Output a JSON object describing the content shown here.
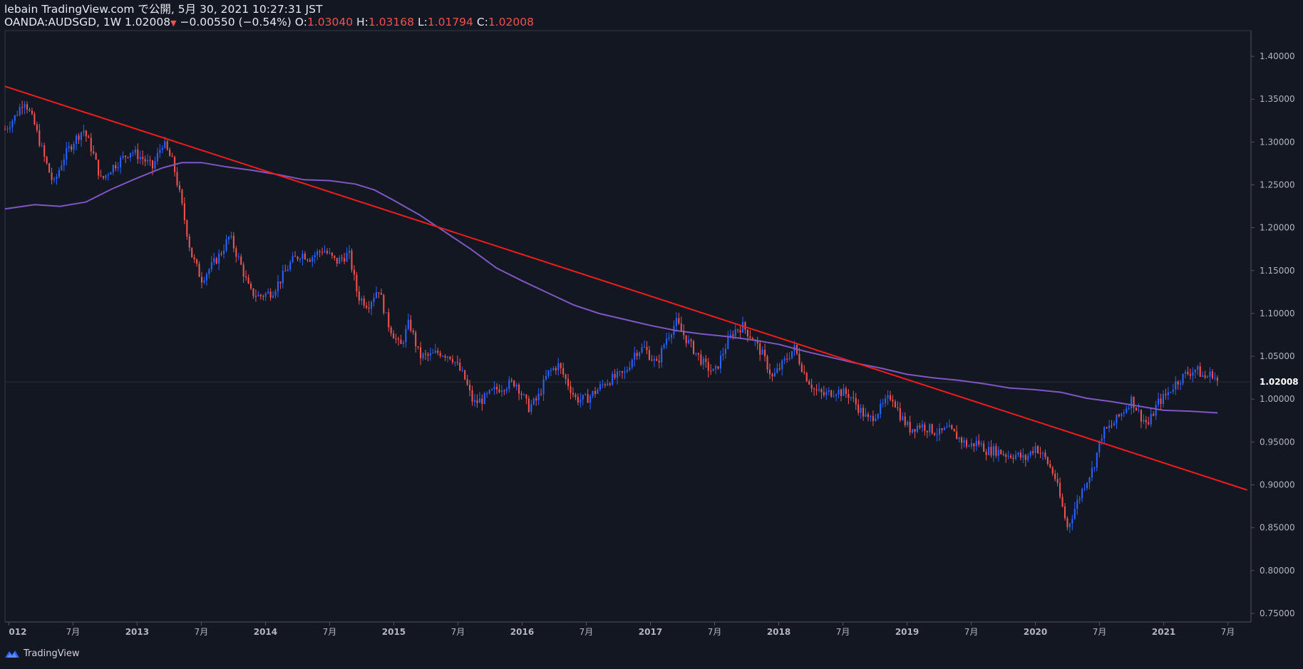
{
  "header": {
    "line1": "lebain TradingView.com で公開, 5月 30, 2021 10:27:31 JST",
    "symbol": "OANDA:AUDSGD, 1W",
    "last": "1.02008",
    "change": "−0.00550 (−0.54%)",
    "o_label": "O:",
    "o_val": "1.03040",
    "h_label": "H:",
    "h_val": "1.03168",
    "l_label": "L:",
    "l_val": "1.01794",
    "c_label": "C:",
    "c_val": "1.02008"
  },
  "footer": {
    "brand": "TradingView"
  },
  "colors": {
    "bg": "#131722",
    "up": "#2962ff",
    "down": "#ef5350",
    "ma": "#7e57c2",
    "trend": "#f21c1c",
    "axis": "#b2b5be"
  },
  "chart_data": {
    "type": "candlestick",
    "symbol": "OANDA:AUDSGD",
    "interval": "1W",
    "ylim": [
      0.74,
      1.43
    ],
    "y_ticks": [
      "1.40000",
      "1.35000",
      "1.30000",
      "1.25000",
      "1.20000",
      "1.15000",
      "1.10000",
      "1.05000",
      "1.00000",
      "0.95000",
      "0.90000",
      "0.85000",
      "0.80000",
      "0.75000"
    ],
    "y_tick_values": [
      1.4,
      1.35,
      1.3,
      1.25,
      1.2,
      1.15,
      1.1,
      1.05,
      1.0,
      0.95,
      0.9,
      0.85,
      0.8,
      0.75
    ],
    "x_ticks": [
      "012",
      "7月",
      "2013",
      "7月",
      "2014",
      "7月",
      "2015",
      "7月",
      "2016",
      "7月",
      "2017",
      "7月",
      "2018",
      "7月",
      "2019",
      "7月",
      "2020",
      "7月",
      "2021",
      "7月"
    ],
    "x_tick_years": [
      2012.0,
      2012.5,
      2013.0,
      2013.5,
      2014.0,
      2014.5,
      2015.0,
      2015.5,
      2016.0,
      2016.5,
      2017.0,
      2017.5,
      2018.0,
      2018.5,
      2019.0,
      2019.5,
      2020.0,
      2020.5,
      2021.0,
      2021.5
    ],
    "last_price": "1.02008",
    "close_path": [
      [
        2011.97,
        1.315
      ],
      [
        2012.05,
        1.33
      ],
      [
        2012.12,
        1.35
      ],
      [
        2012.2,
        1.32
      ],
      [
        2012.28,
        1.28
      ],
      [
        2012.35,
        1.25
      ],
      [
        2012.42,
        1.28
      ],
      [
        2012.5,
        1.3
      ],
      [
        2012.58,
        1.315
      ],
      [
        2012.65,
        1.29
      ],
      [
        2012.72,
        1.255
      ],
      [
        2012.8,
        1.27
      ],
      [
        2012.88,
        1.28
      ],
      [
        2012.95,
        1.29
      ],
      [
        2013.05,
        1.28
      ],
      [
        2013.12,
        1.27
      ],
      [
        2013.2,
        1.3
      ],
      [
        2013.28,
        1.275
      ],
      [
        2013.33,
        1.24
      ],
      [
        2013.42,
        1.17
      ],
      [
        2013.5,
        1.14
      ],
      [
        2013.58,
        1.155
      ],
      [
        2013.65,
        1.17
      ],
      [
        2013.72,
        1.19
      ],
      [
        2013.8,
        1.16
      ],
      [
        2013.88,
        1.125
      ],
      [
        2013.95,
        1.12
      ],
      [
        2014.05,
        1.125
      ],
      [
        2014.12,
        1.14
      ],
      [
        2014.2,
        1.16
      ],
      [
        2014.28,
        1.17
      ],
      [
        2014.35,
        1.165
      ],
      [
        2014.45,
        1.175
      ],
      [
        2014.55,
        1.16
      ],
      [
        2014.65,
        1.17
      ],
      [
        2014.72,
        1.12
      ],
      [
        2014.8,
        1.11
      ],
      [
        2014.88,
        1.13
      ],
      [
        2014.95,
        1.09
      ],
      [
        2015.05,
        1.06
      ],
      [
        2015.12,
        1.09
      ],
      [
        2015.2,
        1.05
      ],
      [
        2015.28,
        1.05
      ],
      [
        2015.35,
        1.055
      ],
      [
        2015.45,
        1.05
      ],
      [
        2015.55,
        1.025
      ],
      [
        2015.62,
        0.995
      ],
      [
        2015.7,
        1.0
      ],
      [
        2015.78,
        1.01
      ],
      [
        2015.85,
        1.015
      ],
      [
        2015.95,
        1.02
      ],
      [
        2016.05,
        0.99
      ],
      [
        2016.12,
        1.0
      ],
      [
        2016.2,
        1.03
      ],
      [
        2016.28,
        1.04
      ],
      [
        2016.35,
        1.02
      ],
      [
        2016.42,
        1.0
      ],
      [
        2016.5,
        1.0
      ],
      [
        2016.58,
        1.01
      ],
      [
        2016.65,
        1.02
      ],
      [
        2016.72,
        1.025
      ],
      [
        2016.8,
        1.03
      ],
      [
        2016.88,
        1.055
      ],
      [
        2016.95,
        1.06
      ],
      [
        2017.05,
        1.04
      ],
      [
        2017.12,
        1.07
      ],
      [
        2017.2,
        1.09
      ],
      [
        2017.28,
        1.07
      ],
      [
        2017.35,
        1.055
      ],
      [
        2017.42,
        1.04
      ],
      [
        2017.5,
        1.03
      ],
      [
        2017.58,
        1.06
      ],
      [
        2017.65,
        1.08
      ],
      [
        2017.72,
        1.085
      ],
      [
        2017.8,
        1.07
      ],
      [
        2017.88,
        1.05
      ],
      [
        2017.95,
        1.025
      ],
      [
        2018.05,
        1.045
      ],
      [
        2018.12,
        1.06
      ],
      [
        2018.2,
        1.03
      ],
      [
        2018.28,
        1.01
      ],
      [
        2018.35,
        1.005
      ],
      [
        2018.45,
        1.01
      ],
      [
        2018.55,
        1.005
      ],
      [
        2018.62,
        0.99
      ],
      [
        2018.7,
        0.975
      ],
      [
        2018.8,
        0.99
      ],
      [
        2018.88,
        1.005
      ],
      [
        2018.95,
        0.98
      ],
      [
        2019.02,
        0.965
      ],
      [
        2019.1,
        0.97
      ],
      [
        2019.18,
        0.965
      ],
      [
        2019.25,
        0.96
      ],
      [
        2019.32,
        0.965
      ],
      [
        2019.4,
        0.955
      ],
      [
        2019.48,
        0.945
      ],
      [
        2019.55,
        0.95
      ],
      [
        2019.62,
        0.94
      ],
      [
        2019.7,
        0.94
      ],
      [
        2019.78,
        0.935
      ],
      [
        2019.85,
        0.935
      ],
      [
        2019.92,
        0.93
      ],
      [
        2020.0,
        0.945
      ],
      [
        2020.08,
        0.93
      ],
      [
        2020.15,
        0.91
      ],
      [
        2020.2,
        0.88
      ],
      [
        2020.25,
        0.85
      ],
      [
        2020.3,
        0.87
      ],
      [
        2020.38,
        0.9
      ],
      [
        2020.45,
        0.92
      ],
      [
        2020.52,
        0.96
      ],
      [
        2020.6,
        0.97
      ],
      [
        2020.68,
        0.985
      ],
      [
        2020.75,
        1.0
      ],
      [
        2020.82,
        0.98
      ],
      [
        2020.88,
        0.97
      ],
      [
        2020.95,
        0.995
      ],
      [
        2021.02,
        1.005
      ],
      [
        2021.1,
        1.02
      ],
      [
        2021.18,
        1.03
      ],
      [
        2021.25,
        1.035
      ],
      [
        2021.32,
        1.025
      ],
      [
        2021.38,
        1.03
      ],
      [
        2021.42,
        1.02
      ]
    ],
    "moving_average": [
      [
        2011.97,
        1.222
      ],
      [
        2012.2,
        1.227
      ],
      [
        2012.4,
        1.225
      ],
      [
        2012.6,
        1.23
      ],
      [
        2012.8,
        1.245
      ],
      [
        2013.0,
        1.258
      ],
      [
        2013.2,
        1.27
      ],
      [
        2013.35,
        1.276
      ],
      [
        2013.5,
        1.276
      ],
      [
        2013.7,
        1.271
      ],
      [
        2013.9,
        1.267
      ],
      [
        2014.1,
        1.262
      ],
      [
        2014.3,
        1.256
      ],
      [
        2014.5,
        1.255
      ],
      [
        2014.7,
        1.251
      ],
      [
        2014.85,
        1.244
      ],
      [
        2015.0,
        1.232
      ],
      [
        2015.2,
        1.215
      ],
      [
        2015.4,
        1.195
      ],
      [
        2015.6,
        1.175
      ],
      [
        2015.8,
        1.153
      ],
      [
        2016.0,
        1.138
      ],
      [
        2016.2,
        1.124
      ],
      [
        2016.4,
        1.11
      ],
      [
        2016.6,
        1.1
      ],
      [
        2016.8,
        1.093
      ],
      [
        2017.0,
        1.086
      ],
      [
        2017.2,
        1.08
      ],
      [
        2017.4,
        1.076
      ],
      [
        2017.6,
        1.073
      ],
      [
        2017.8,
        1.069
      ],
      [
        2018.0,
        1.064
      ],
      [
        2018.2,
        1.056
      ],
      [
        2018.4,
        1.049
      ],
      [
        2018.6,
        1.042
      ],
      [
        2018.8,
        1.036
      ],
      [
        2019.0,
        1.029
      ],
      [
        2019.2,
        1.025
      ],
      [
        2019.4,
        1.022
      ],
      [
        2019.6,
        1.018
      ],
      [
        2019.8,
        1.013
      ],
      [
        2020.0,
        1.011
      ],
      [
        2020.2,
        1.008
      ],
      [
        2020.4,
        1.001
      ],
      [
        2020.6,
        0.997
      ],
      [
        2020.8,
        0.992
      ],
      [
        2021.0,
        0.987
      ],
      [
        2021.2,
        0.986
      ],
      [
        2021.42,
        0.984
      ]
    ],
    "trendline": [
      [
        2011.97,
        1.365
      ],
      [
        2021.65,
        0.894
      ]
    ]
  }
}
